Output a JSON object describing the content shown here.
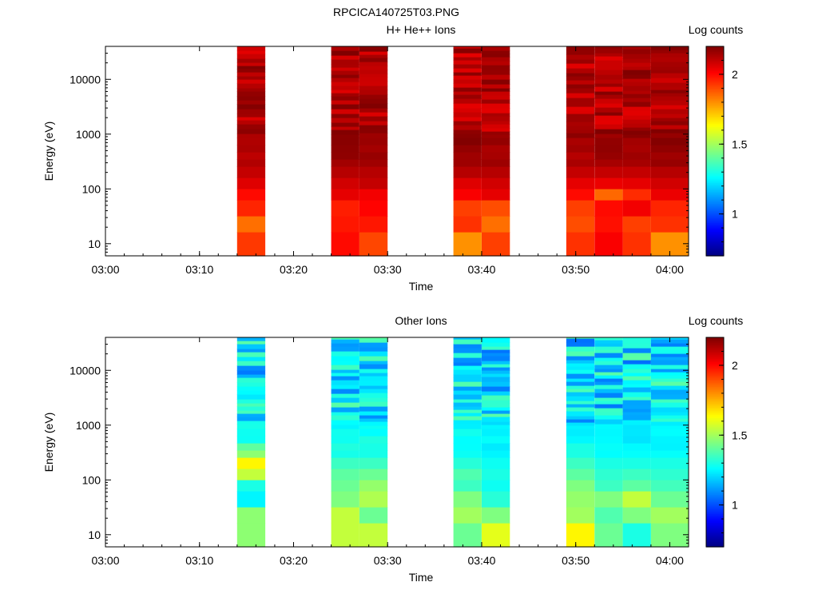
{
  "figure_title": "RPCICA140725T03.PNG",
  "chart_data": [
    {
      "type": "heatmap",
      "title": "H+ He++ Ions",
      "xlabel": "Time",
      "ylabel": "Energy (eV)",
      "x_ticks": [
        "03:00",
        "03:10",
        "03:20",
        "03:30",
        "03:40",
        "03:50",
        "04:00"
      ],
      "x_range": [
        "03:00",
        "04:02"
      ],
      "y_scale": "log",
      "y_ticks": [
        "10",
        "100",
        "1000",
        "10000"
      ],
      "y_range": [
        6,
        40000
      ],
      "colorbar": {
        "label": "Log counts",
        "ticks": [
          "1",
          "1.5",
          "2"
        ],
        "range": [
          0.7,
          2.2
        ],
        "colormap": "jet"
      },
      "blocks": [
        {
          "start": "03:14",
          "end": "03:17",
          "low_energy_log_counts": [
            1.93,
            1.85,
            1.96,
            2.0,
            2.06,
            2.1,
            2.12,
            2.13,
            2.14,
            2.15,
            2.16,
            2.17
          ]
        },
        {
          "start": "03:24",
          "end": "03:27",
          "low_energy_log_counts": [
            2.0,
            1.98,
            1.97,
            2.05,
            2.08,
            2.12,
            2.14,
            2.15,
            2.16,
            2.17,
            2.18,
            2.19
          ]
        },
        {
          "start": "03:27",
          "end": "03:30",
          "low_energy_log_counts": [
            1.91,
            1.98,
            2.01,
            2.03,
            2.1,
            2.12,
            2.14,
            2.15,
            2.16,
            2.17,
            2.18,
            2.19
          ]
        },
        {
          "start": "03:37",
          "end": "03:40",
          "low_energy_log_counts": [
            1.8,
            1.94,
            1.92,
            2.02,
            2.06,
            2.12,
            2.14,
            2.15,
            2.16,
            2.17,
            2.18,
            2.19
          ]
        },
        {
          "start": "03:40",
          "end": "03:43",
          "low_energy_log_counts": [
            1.92,
            1.85,
            1.9,
            2.05,
            2.08,
            2.12,
            2.14,
            2.15,
            2.16,
            2.17,
            2.18,
            2.19
          ]
        },
        {
          "start": "03:49",
          "end": "03:52",
          "low_energy_log_counts": [
            1.94,
            1.9,
            1.92,
            2.0,
            2.05,
            2.1,
            2.12,
            2.14,
            2.15,
            2.16,
            2.17,
            2.18
          ]
        },
        {
          "start": "03:52",
          "end": "03:55",
          "low_energy_log_counts": [
            2.02,
            1.99,
            2.0,
            1.86,
            2.04,
            2.1,
            2.12,
            2.14,
            2.15,
            2.16,
            2.17,
            2.18
          ]
        },
        {
          "start": "03:55",
          "end": "03:58",
          "low_energy_log_counts": [
            1.94,
            1.92,
            2.03,
            1.95,
            2.05,
            2.1,
            2.12,
            2.14,
            2.15,
            2.16,
            2.17,
            2.18
          ]
        },
        {
          "start": "03:58",
          "end": "04:02",
          "low_energy_log_counts": [
            1.8,
            1.94,
            1.96,
            2.04,
            2.08,
            2.12,
            2.14,
            2.15,
            2.16,
            2.17,
            2.18,
            2.19
          ]
        }
      ],
      "upper_energy_log_counts_range": [
        2.05,
        2.2
      ]
    },
    {
      "type": "heatmap",
      "title": "Other Ions",
      "xlabel": "Time",
      "ylabel": "Energy (eV)",
      "x_ticks": [
        "03:00",
        "03:10",
        "03:20",
        "03:30",
        "03:40",
        "03:50",
        "04:00"
      ],
      "x_range": [
        "03:00",
        "04:02"
      ],
      "y_scale": "log",
      "y_ticks": [
        "10",
        "100",
        "1000",
        "10000"
      ],
      "y_range": [
        6,
        40000
      ],
      "colorbar": {
        "label": "Log counts",
        "ticks": [
          "1",
          "1.5",
          "2"
        ],
        "range": [
          0.7,
          2.2
        ],
        "colormap": "jet"
      },
      "blocks": [
        {
          "start": "03:14",
          "end": "03:17",
          "low_energy_log_counts": [
            1.47,
            1.47,
            1.25,
            1.3,
            1.55,
            1.65,
            1.5,
            1.38,
            1.3,
            1.3,
            1.28,
            1.27
          ]
        },
        {
          "start": "03:24",
          "end": "03:27",
          "low_energy_log_counts": [
            1.55,
            1.55,
            1.45,
            1.42,
            1.4,
            1.35,
            1.32,
            1.3,
            1.28,
            1.27,
            1.26,
            1.25
          ]
        },
        {
          "start": "03:27",
          "end": "03:30",
          "low_energy_log_counts": [
            1.55,
            1.42,
            1.52,
            1.48,
            1.42,
            1.35,
            1.32,
            1.3,
            1.28,
            1.27,
            1.26,
            1.25
          ]
        },
        {
          "start": "03:37",
          "end": "03:40",
          "low_energy_log_counts": [
            1.42,
            1.5,
            1.45,
            1.35,
            1.38,
            1.32,
            1.3,
            1.28,
            1.27,
            1.26,
            1.25,
            1.24
          ]
        },
        {
          "start": "03:40",
          "end": "03:43",
          "low_energy_log_counts": [
            1.6,
            1.45,
            1.32,
            1.28,
            1.3,
            1.28,
            1.27,
            1.26,
            1.25,
            1.24,
            1.23,
            1.22
          ]
        },
        {
          "start": "03:49",
          "end": "03:52",
          "low_energy_log_counts": [
            1.65,
            1.5,
            1.48,
            1.45,
            1.4,
            1.35,
            1.32,
            1.28,
            1.27,
            1.26,
            1.25,
            1.24
          ]
        },
        {
          "start": "03:52",
          "end": "03:55",
          "low_energy_log_counts": [
            1.42,
            1.38,
            1.45,
            1.35,
            1.33,
            1.3,
            1.28,
            1.26,
            1.25,
            1.24,
            1.23,
            1.22
          ]
        },
        {
          "start": "03:55",
          "end": "03:58",
          "low_energy_log_counts": [
            1.3,
            1.45,
            1.55,
            1.4,
            1.35,
            1.3,
            1.28,
            1.26,
            1.25,
            1.24,
            1.23,
            1.22
          ]
        },
        {
          "start": "03:58",
          "end": "04:02",
          "low_energy_log_counts": [
            1.45,
            1.5,
            1.42,
            1.36,
            1.33,
            1.3,
            1.28,
            1.26,
            1.25,
            1.24,
            1.23,
            1.22
          ]
        }
      ],
      "upper_energy_log_counts_range": [
        1.05,
        1.4
      ]
    }
  ]
}
